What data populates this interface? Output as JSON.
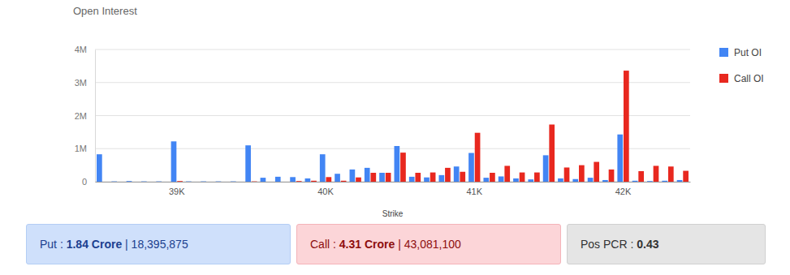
{
  "chart_data": {
    "type": "bar",
    "title": "Open Interest",
    "x_label": "Strike",
    "categories": [
      null,
      null,
      null,
      null,
      null,
      "39K",
      null,
      null,
      null,
      null,
      null,
      null,
      null,
      null,
      null,
      "40K",
      null,
      null,
      null,
      null,
      null,
      null,
      null,
      null,
      null,
      "41K",
      null,
      null,
      null,
      null,
      null,
      null,
      null,
      null,
      null,
      "42K",
      null,
      null,
      null,
      null
    ],
    "series": [
      {
        "name": "Put OI",
        "color": "#4285f4",
        "values": [
          830000,
          10000,
          20000,
          10000,
          10000,
          1220000,
          10000,
          10000,
          10000,
          10000,
          1100000,
          120000,
          150000,
          140000,
          100000,
          830000,
          240000,
          370000,
          420000,
          270000,
          1080000,
          150000,
          130000,
          200000,
          460000,
          870000,
          120000,
          160000,
          100000,
          70000,
          800000,
          100000,
          80000,
          120000,
          50000,
          1430000,
          30000,
          20000,
          30000,
          50000
        ]
      },
      {
        "name": "Call OI",
        "color": "#e8281f",
        "values": [
          0,
          0,
          0,
          0,
          0,
          20000,
          0,
          0,
          0,
          0,
          10000,
          0,
          0,
          20000,
          30000,
          140000,
          30000,
          130000,
          270000,
          270000,
          880000,
          270000,
          280000,
          420000,
          300000,
          1480000,
          270000,
          480000,
          280000,
          280000,
          1730000,
          430000,
          500000,
          600000,
          370000,
          3360000,
          320000,
          480000,
          460000,
          330000
        ]
      }
    ],
    "ylim": [
      0,
      4000000
    ],
    "yticks": [
      0,
      {
        "value": 1000000,
        "label": "1M"
      },
      {
        "value": 2000000,
        "label": "2M"
      },
      {
        "value": 3000000,
        "label": "3M"
      },
      {
        "value": 4000000,
        "label": "4M"
      }
    ],
    "grid": true,
    "legend": "right"
  },
  "summary": [
    {
      "label": "Put :",
      "value": "1.84 Crore",
      "separator": "|",
      "total": "18,395,875"
    },
    {
      "label": "Call :",
      "value": "4.31 Crore",
      "separator": "|",
      "total": "43,081,100"
    },
    {
      "label": "Pos PCR :",
      "value": "0.43"
    }
  ]
}
